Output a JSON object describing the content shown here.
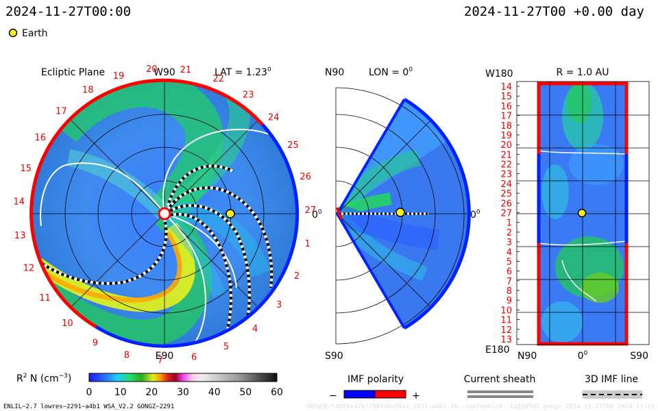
{
  "header": {
    "left_time": "2024-11-27T00:00",
    "right_time": "2024-11-27T00 +0.00 day",
    "legend_label": "Earth",
    "earth_color": "#ffee22"
  },
  "ecliptic": {
    "title": "Ecliptic Plane",
    "top_label": "W90",
    "lat_label": "LAT = 1.23",
    "lat_sup": "0",
    "right_label": "0",
    "right_sup": "0",
    "bottom_label": "E90",
    "carrington_numbers": [
      "20",
      "21",
      "22",
      "23",
      "24",
      "25",
      "26",
      "27",
      "1",
      "2",
      "3",
      "4",
      "5",
      "6",
      "7",
      "8",
      "9",
      "10",
      "11",
      "12",
      "13",
      "14",
      "15",
      "16",
      "17",
      "18",
      "19"
    ]
  },
  "meridional": {
    "top_left_label": "N90",
    "lon_label": "LON = 0",
    "lon_sup": "0",
    "right_label": "0",
    "right_sup": "0",
    "bottom_label": "S90"
  },
  "map_panel": {
    "top_left_label": "W180",
    "title": "R = 1.0 AU",
    "bottom_left_label": "E180",
    "x_labels": [
      "N90",
      "0",
      "S90"
    ],
    "x_sup": "0",
    "y_labels": [
      "14",
      "15",
      "16",
      "17",
      "18",
      "19",
      "20",
      "21",
      "22",
      "23",
      "24",
      "25",
      "26",
      "27",
      "1",
      "2",
      "3",
      "4",
      "5",
      "6",
      "7",
      "8",
      "9",
      "10",
      "11",
      "12",
      "13"
    ]
  },
  "colorbar": {
    "label_main": "R",
    "label_sup": "2",
    "label_rest": " N (cm",
    "label_exp": "−3",
    "label_close": ")",
    "ticks": [
      "0",
      "10",
      "20",
      "30",
      "40",
      "50",
      "60"
    ],
    "range": [
      0,
      60
    ]
  },
  "imf_legend": {
    "title": "IMF polarity",
    "minus": "−",
    "plus": "+",
    "neg_color": "#0000ff",
    "pos_color": "#ff0000"
  },
  "sheath_legend": {
    "title": "Current sheath"
  },
  "line_legend": {
    "title": "3D IMF line"
  },
  "footer": {
    "left": "ENLIL−2.7 lowres−2291−a4b1 WSA_V2.2 GONGZ−2291",
    "right": "UNIQUE:t2802v426/256x30x90x1.2231-a4b1.16--noptunmlcd--1q53d5d2.gongz-2024-11-27T00    2024-11-26"
  },
  "chart_data": {
    "type": "heatmap",
    "quantity": "R² N (cm⁻³)",
    "colorbar_range": [
      0,
      60
    ],
    "colorbar_ticks": [
      0,
      10,
      20,
      30,
      40,
      50,
      60
    ],
    "earth_position": {
      "lat_deg": 1.23,
      "lon_deg": 0,
      "r_au": 1.0
    }
  }
}
